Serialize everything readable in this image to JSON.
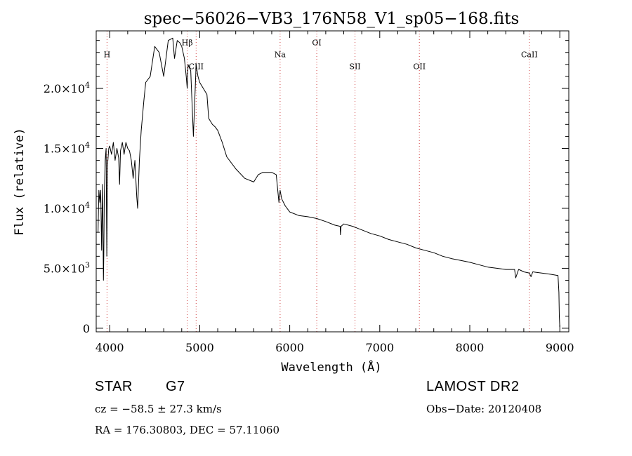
{
  "chart_data": {
    "type": "line",
    "title": "spec−56026−VB3_176N58_V1_sp05−168.fits",
    "xlabel": "Wavelength (Å)",
    "ylabel": "Flux (relative)",
    "xlim": [
      3850,
      9100
    ],
    "ylim": [
      -300,
      24800
    ],
    "x_ticks": [
      4000,
      5000,
      6000,
      7000,
      8000,
      9000
    ],
    "y_ticks": [
      {
        "value": 0,
        "label": "0"
      },
      {
        "value": 5000,
        "label": "5.0×10",
        "exp": "3"
      },
      {
        "value": 10000,
        "label": "1.0×10",
        "exp": "4"
      },
      {
        "value": 15000,
        "label": "1.5×10",
        "exp": "4"
      },
      {
        "value": 20000,
        "label": "2.0×10",
        "exp": "4"
      }
    ],
    "spectral_lines": [
      {
        "label": "H",
        "x": 3970,
        "label_y": 22600
      },
      {
        "label": "Hβ",
        "x": 4861,
        "label_y": 23600
      },
      {
        "label": "CIII",
        "x": 4960,
        "label_y": 21600
      },
      {
        "label": "Na",
        "x": 5893,
        "label_y": 22600
      },
      {
        "label": "OI",
        "x": 6300,
        "label_y": 23600
      },
      {
        "label": "SII",
        "x": 6725,
        "label_y": 21600
      },
      {
        "label": "OII",
        "x": 7440,
        "label_y": 21600
      },
      {
        "label": "CaII",
        "x": 8662,
        "label_y": 22600
      }
    ],
    "series": [
      {
        "x": [
          3870,
          3880,
          3890,
          3900,
          3910,
          3920,
          3930,
          3934,
          3940,
          3950,
          3960,
          3968,
          3975,
          3990,
          4000,
          4020,
          4040,
          4060,
          4080,
          4100,
          4110,
          4120,
          4140,
          4160,
          4180,
          4200,
          4220,
          4240,
          4260,
          4280,
          4300,
          4310,
          4330,
          4350,
          4380,
          4400,
          4450,
          4500,
          4550,
          4600,
          4650,
          4700,
          4720,
          4750,
          4780,
          4800,
          4830,
          4850,
          4861,
          4870,
          4880,
          4900,
          4930,
          4960,
          4980,
          5000,
          5040,
          5080,
          5100,
          5140,
          5170,
          5200,
          5250,
          5300,
          5400,
          5500,
          5600,
          5650,
          5700,
          5750,
          5800,
          5850,
          5880,
          5893,
          5910,
          5950,
          6000,
          6100,
          6200,
          6300,
          6400,
          6500,
          6560,
          6563,
          6570,
          6600,
          6700,
          6800,
          6900,
          7000,
          7100,
          7200,
          7300,
          7400,
          7500,
          7600,
          7700,
          7800,
          7900,
          8000,
          8100,
          8200,
          8300,
          8400,
          8498,
          8510,
          8542,
          8560,
          8600,
          8662,
          8680,
          8700,
          8800,
          8900,
          8980,
          8990,
          8995,
          9000
        ],
        "y": [
          8000,
          11500,
          10500,
          11500,
          6500,
          12000,
          4000,
          6000,
          11000,
          14000,
          15000,
          6000,
          13500,
          15000,
          15200,
          14500,
          15500,
          14000,
          15000,
          14200,
          12000,
          14800,
          15500,
          14500,
          15500,
          15000,
          14800,
          14000,
          12500,
          14000,
          11000,
          10000,
          14000,
          16500,
          19000,
          20500,
          21000,
          23500,
          23000,
          21000,
          24000,
          24200,
          22500,
          24000,
          23800,
          23500,
          22500,
          21000,
          20000,
          22000,
          21800,
          21500,
          16000,
          22000,
          21000,
          20500,
          20000,
          19500,
          17500,
          17000,
          16800,
          16500,
          15500,
          14300,
          13300,
          12500,
          12200,
          12800,
          13000,
          13000,
          13000,
          12800,
          10500,
          11500,
          10800,
          10200,
          9700,
          9400,
          9300,
          9150,
          8900,
          8600,
          8500,
          7800,
          8500,
          8700,
          8500,
          8200,
          7900,
          7700,
          7400,
          7200,
          7000,
          6700,
          6500,
          6300,
          6000,
          5800,
          5650,
          5500,
          5300,
          5100,
          5000,
          4900,
          4900,
          4200,
          4900,
          4850,
          4700,
          4600,
          4300,
          4700,
          4600,
          4500,
          4400,
          3000,
          1000,
          100
        ]
      }
    ]
  },
  "info": {
    "class_label": "STAR",
    "subclass": "G7",
    "survey": "LAMOST DR2",
    "cz_text": "cz = −58.5 ± 27.3 km/s",
    "obs_date": "Obs−Date: 20120408",
    "radec_text": "RA = 176.30803, DEC =  57.11060"
  }
}
